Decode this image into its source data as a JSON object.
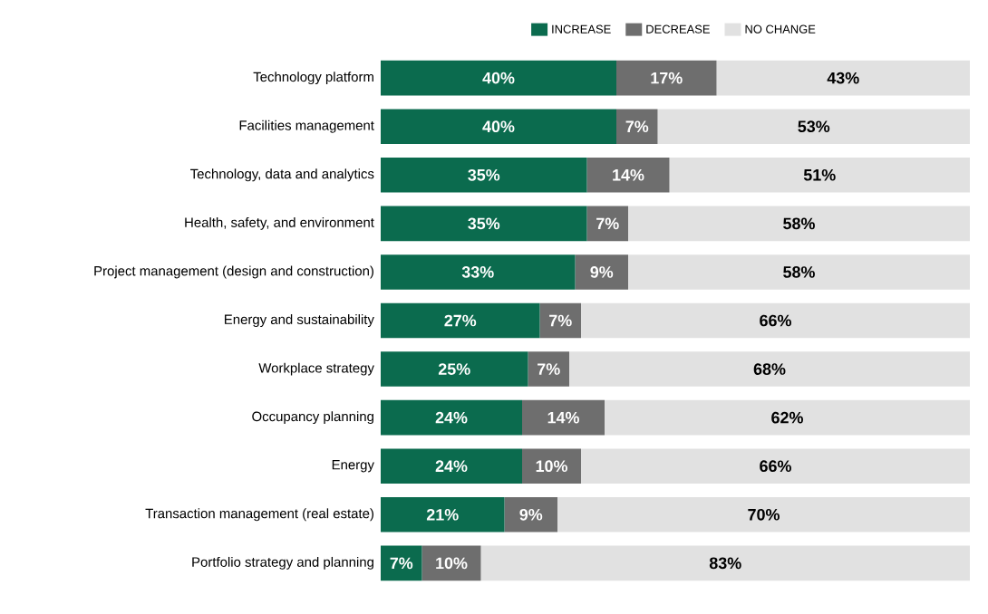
{
  "chart_data": {
    "type": "bar",
    "orientation": "horizontal",
    "stacked": true,
    "categories": [
      "Technology platform",
      "Facilities management",
      "Technology, data and analytics",
      "Health, safety, and environment",
      "Project management (design and construction)",
      "Energy and sustainability",
      "Workplace strategy",
      "Occupancy planning",
      "Energy",
      "Transaction management (real estate)",
      "Portfolio strategy and planning"
    ],
    "series": [
      {
        "name": "INCREASE",
        "color": "#0b6b4e",
        "values": [
          40,
          40,
          35,
          35,
          33,
          27,
          25,
          24,
          24,
          21,
          7
        ],
        "value_labels": [
          "40%",
          "40%",
          "35%",
          "35%",
          "33%",
          "27%",
          "25%",
          "24%",
          "24%",
          "21%",
          "7%"
        ]
      },
      {
        "name": "DECREASE",
        "color": "#6e6e6e",
        "values": [
          17,
          7,
          14,
          7,
          9,
          7,
          7,
          14,
          10,
          9,
          10
        ],
        "value_labels": [
          "17%",
          "7%",
          "14%",
          "7%",
          "9%",
          "7%",
          "7%",
          "14%",
          "10%",
          "9%",
          "10%"
        ]
      },
      {
        "name": "NO CHANGE",
        "color": "#e1e1e1",
        "values": [
          43,
          53,
          51,
          58,
          58,
          66,
          68,
          62,
          66,
          70,
          83
        ],
        "value_labels": [
          "43%",
          "53%",
          "51%",
          "58%",
          "58%",
          "66%",
          "68%",
          "62%",
          "66%",
          "70%",
          "83%"
        ]
      }
    ],
    "tick_labels": "y",
    "legend": "top"
  }
}
